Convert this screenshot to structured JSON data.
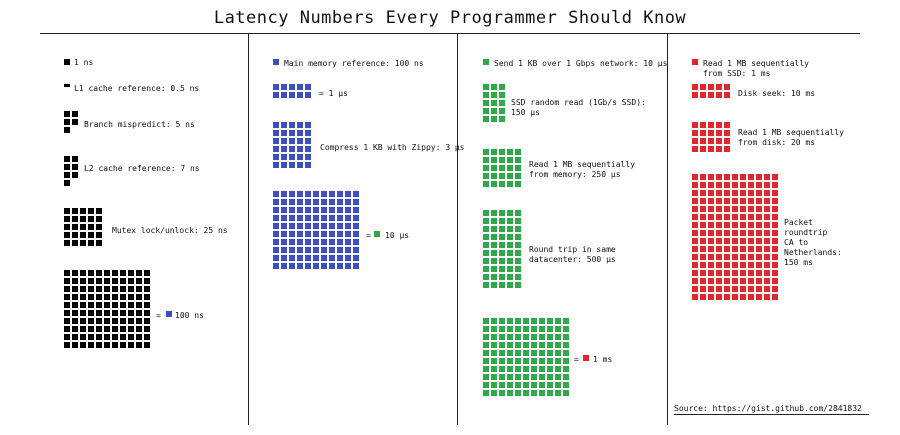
{
  "title": "Latency Numbers Every Programmer Should Know",
  "colors": {
    "black": "#000000",
    "blue": "#3d4fc1",
    "green": "#2fa84a",
    "red": "#e3262e"
  },
  "columns": [
    {
      "name": "black",
      "items": [
        {
          "label": "1 ns"
        },
        {
          "label": "L1 cache reference: 0.5 ns"
        },
        {
          "label": "Branch mispredict: 5 ns"
        },
        {
          "label": "L2 cache reference: 7 ns"
        },
        {
          "label": "Mutex lock/unlock: 25 ns"
        },
        {
          "label": "= ",
          "suffix": "100 ns"
        }
      ]
    },
    {
      "name": "blue",
      "items": [
        {
          "label": "Main memory reference: 100 ns"
        },
        {
          "label": "= 1 µs"
        },
        {
          "label": "Compress 1 KB with Zippy: 3 µs"
        },
        {
          "label": "= ",
          "suffix": "10 µs"
        }
      ]
    },
    {
      "name": "green",
      "items": [
        {
          "label": "Send 1 KB over 1 Gbps network: 10 µs"
        },
        {
          "label": "SSD random read (1Gb/s SSD):",
          "label2": "150 µs"
        },
        {
          "label": "Read 1 MB sequentially",
          "label2": "from memory: 250 µs"
        },
        {
          "label": "Round trip in same",
          "label2": "datacenter: 500 µs"
        },
        {
          "label": "= ",
          "suffix": "1 ms"
        }
      ]
    },
    {
      "name": "red",
      "items": [
        {
          "label": "Read 1 MB sequentially",
          "label2": "from SSD: 1 ms"
        },
        {
          "label": "Disk seek: 10 ms"
        },
        {
          "label": "Read 1 MB sequentially",
          "label2": "from disk: 20 ms"
        },
        {
          "label": "Packet",
          "label2": "roundtrip",
          "label3": "CA to",
          "label4": "Netherlands:",
          "label5": "150 ms"
        }
      ]
    }
  ],
  "source": "Source: https://gist.github.com/2841832"
}
